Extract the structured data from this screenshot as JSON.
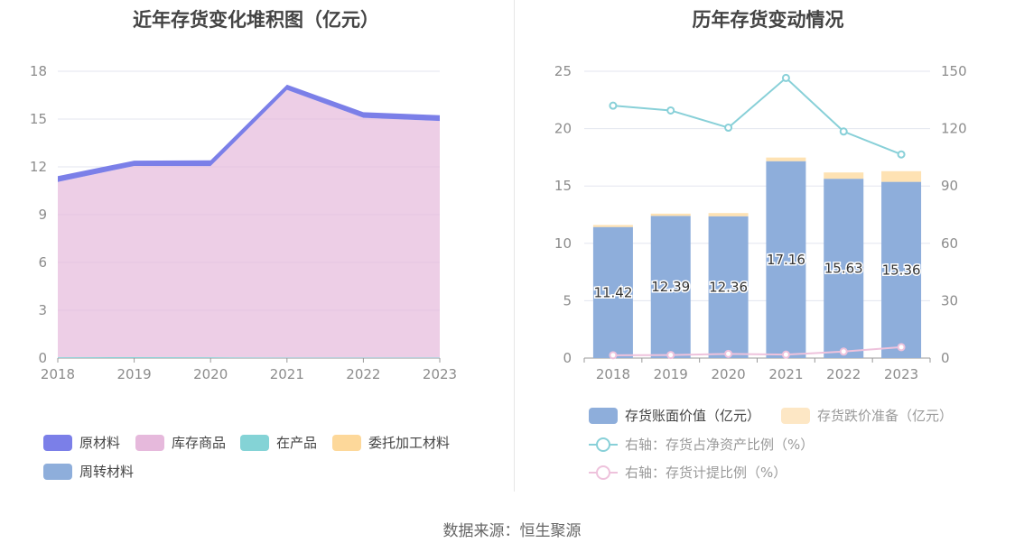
{
  "source": "数据来源：恒生聚源",
  "colors": {
    "raw_material": "#7b7fe8",
    "inventory_goods": "#e6b9dc",
    "wip": "#84d3d6",
    "consigned": "#fdd89a",
    "turnover": "#8eaedb",
    "book_value": "#8eaedb",
    "impairment": "#fde7c5",
    "ratio_net_assets": "#88d0d8",
    "provision_ratio": "#eec2dc"
  },
  "chart_data": [
    {
      "type": "area",
      "title": "近年存货变化堆积图（亿元）",
      "categories": [
        "2018",
        "2019",
        "2020",
        "2021",
        "2022",
        "2023"
      ],
      "yticks": [
        "0",
        "3",
        "6",
        "9",
        "12",
        "15",
        "18"
      ],
      "ylim": [
        0,
        18
      ],
      "grid": true,
      "legend_position": "bottom",
      "series": [
        {
          "name": "原材料",
          "values": [
            0.37,
            0.33,
            0.36,
            0.33,
            0.35,
            0.36
          ]
        },
        {
          "name": "库存商品",
          "values": [
            11.0,
            12.0,
            12.0,
            16.8,
            15.05,
            14.85
          ]
        },
        {
          "name": "在产品",
          "values": [
            0.05,
            0.06,
            0.05,
            0.03,
            0.03,
            0.03
          ]
        },
        {
          "name": "委托加工材料",
          "values": [
            0,
            0,
            0,
            0,
            0,
            0
          ]
        },
        {
          "name": "周转材料",
          "values": [
            0,
            0,
            0,
            0,
            0,
            0
          ]
        }
      ]
    },
    {
      "type": "bar",
      "title": "历年存货变动情况",
      "categories": [
        "2018",
        "2019",
        "2020",
        "2021",
        "2022",
        "2023"
      ],
      "yticks_left": [
        "0",
        "5",
        "10",
        "15",
        "20",
        "25"
      ],
      "yticks_right": [
        "0",
        "30",
        "60",
        "90",
        "120",
        "150"
      ],
      "ylim": [
        0,
        25
      ],
      "ylim_right": [
        0,
        150
      ],
      "grid": true,
      "legend_position": "bottom",
      "series": [
        {
          "name": "存货账面价值（亿元）",
          "values": [
            11.42,
            12.39,
            12.36,
            17.16,
            15.63,
            15.36
          ],
          "labels": [
            "11.42",
            "12.39",
            "12.36",
            "17.16",
            "15.63",
            "15.36"
          ]
        },
        {
          "name": "存货跌价准备（亿元）",
          "values": [
            0.18,
            0.2,
            0.28,
            0.32,
            0.55,
            0.93
          ]
        },
        {
          "name": "右轴：存货占净资产比例（%）",
          "axis": "right",
          "values": [
            132,
            129.5,
            120.5,
            146.5,
            118.5,
            106.5
          ]
        },
        {
          "name": "右轴：存货计提比例（%）",
          "axis": "right",
          "values": [
            1.5,
            1.6,
            2.2,
            1.8,
            3.4,
            5.7
          ]
        }
      ]
    }
  ]
}
